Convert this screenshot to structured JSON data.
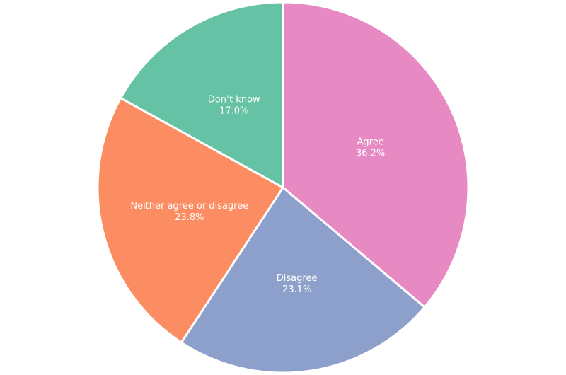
{
  "chart_data": {
    "type": "pie",
    "start_angle_deg": 0,
    "direction": "clockwise",
    "slices": [
      {
        "label": "Agree",
        "value": 36.2,
        "value_label": "36.2%",
        "color": "#e78ac3"
      },
      {
        "label": "Disagree",
        "value": 23.1,
        "value_label": "23.1%",
        "color": "#8da0cb"
      },
      {
        "label": "Neither agree or disagree",
        "value": 23.8,
        "value_label": "23.8%",
        "color": "#fc8d62"
      },
      {
        "label": "Don’t know",
        "value": 17.0,
        "value_label": "17.0%",
        "color": "#66c2a5"
      }
    ]
  }
}
